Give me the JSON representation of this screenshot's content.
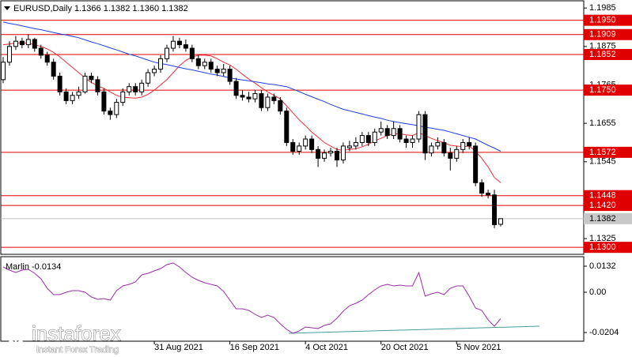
{
  "chart_data": {
    "type": "candlestick",
    "title": "EURUSD,Daily  1.1366 1.1382 1.1360 1.1382",
    "categories": [
      null,
      null,
      null,
      null,
      null,
      null,
      null,
      null,
      null,
      null,
      null,
      null,
      null,
      null,
      null,
      null,
      null,
      null,
      null,
      null,
      null,
      null,
      null,
      null,
      "31 Aug 2021",
      null,
      null,
      null,
      null,
      null,
      null,
      null,
      null,
      null,
      null,
      null,
      "16 Sep 2021",
      null,
      null,
      null,
      null,
      null,
      null,
      null,
      null,
      null,
      null,
      null,
      "4 Oct 2021",
      null,
      null,
      null,
      null,
      null,
      null,
      null,
      null,
      null,
      null,
      null,
      "20 Oct 2021",
      null,
      null,
      null,
      null,
      null,
      null,
      null,
      null,
      null,
      null,
      null,
      "5 Nov 2021",
      null,
      null,
      null,
      null,
      null,
      null,
      null
    ],
    "candles": [
      [
        1.178,
        1.1845,
        1.177,
        1.183
      ],
      [
        1.183,
        1.189,
        1.182,
        1.1875
      ],
      [
        1.1875,
        1.1905,
        1.1865,
        1.189
      ],
      [
        1.189,
        1.19,
        1.187,
        1.188
      ],
      [
        1.188,
        1.1909,
        1.187,
        1.1895
      ],
      [
        1.1895,
        1.19,
        1.186,
        1.187
      ],
      [
        1.187,
        1.188,
        1.184,
        1.185
      ],
      [
        1.185,
        1.186,
        1.182,
        1.183
      ],
      [
        1.183,
        1.184,
        1.178,
        1.179
      ],
      [
        1.179,
        1.18,
        1.1735,
        1.1745
      ],
      [
        1.1745,
        1.1755,
        1.171,
        1.172
      ],
      [
        1.172,
        1.1745,
        1.171,
        1.1735
      ],
      [
        1.1735,
        1.176,
        1.1725,
        1.1745
      ],
      [
        1.1745,
        1.18,
        1.174,
        1.179
      ],
      [
        1.179,
        1.18,
        1.177,
        1.178
      ],
      [
        1.178,
        1.179,
        1.1735,
        1.1745
      ],
      [
        1.1745,
        1.1755,
        1.168,
        1.169
      ],
      [
        1.169,
        1.17,
        1.1665,
        1.168
      ],
      [
        1.168,
        1.1725,
        1.167,
        1.1715
      ],
      [
        1.1715,
        1.1755,
        1.1705,
        1.1745
      ],
      [
        1.1745,
        1.177,
        1.1735,
        1.176
      ],
      [
        1.176,
        1.177,
        1.1735,
        1.1745
      ],
      [
        1.1745,
        1.178,
        1.1735,
        1.177
      ],
      [
        1.177,
        1.181,
        1.176,
        1.18
      ],
      [
        1.18,
        1.182,
        1.179,
        1.181
      ],
      [
        1.181,
        1.185,
        1.18,
        1.184
      ],
      [
        1.184,
        1.188,
        1.183,
        1.187
      ],
      [
        1.187,
        1.1905,
        1.186,
        1.189
      ],
      [
        1.189,
        1.19,
        1.187,
        1.188
      ],
      [
        1.188,
        1.1895,
        1.186,
        1.187
      ],
      [
        1.187,
        1.188,
        1.183,
        1.184
      ],
      [
        1.184,
        1.185,
        1.181,
        1.182
      ],
      [
        1.182,
        1.184,
        1.181,
        1.183
      ],
      [
        1.183,
        1.184,
        1.18,
        1.181
      ],
      [
        1.181,
        1.182,
        1.179,
        1.18
      ],
      [
        1.18,
        1.1825,
        1.179,
        1.181
      ],
      [
        1.181,
        1.182,
        1.1765,
        1.1775
      ],
      [
        1.1775,
        1.1785,
        1.1725,
        1.1735
      ],
      [
        1.1735,
        1.175,
        1.172,
        1.173
      ],
      [
        1.173,
        1.1745,
        1.1715,
        1.1725
      ],
      [
        1.1725,
        1.175,
        1.1715,
        1.174
      ],
      [
        1.174,
        1.175,
        1.169,
        1.17
      ],
      [
        1.17,
        1.174,
        1.169,
        1.173
      ],
      [
        1.173,
        1.174,
        1.171,
        1.172
      ],
      [
        1.172,
        1.173,
        1.168,
        1.169
      ],
      [
        1.169,
        1.17,
        1.159,
        1.16
      ],
      [
        1.16,
        1.161,
        1.1565,
        1.1575
      ],
      [
        1.1575,
        1.16,
        1.1565,
        1.159
      ],
      [
        1.159,
        1.162,
        1.158,
        1.161
      ],
      [
        1.161,
        1.162,
        1.157,
        1.158
      ],
      [
        1.158,
        1.159,
        1.153,
        1.1555
      ],
      [
        1.1555,
        1.158,
        1.1545,
        1.157
      ],
      [
        1.157,
        1.1585,
        1.156,
        1.1575
      ],
      [
        1.1575,
        1.1585,
        1.153,
        1.155
      ],
      [
        1.155,
        1.16,
        1.154,
        1.159
      ],
      [
        1.1585,
        1.1605,
        1.1575,
        1.159
      ],
      [
        1.159,
        1.1615,
        1.158,
        1.16
      ],
      [
        1.16,
        1.163,
        1.159,
        1.162
      ],
      [
        1.162,
        1.163,
        1.159,
        1.16
      ],
      [
        1.16,
        1.164,
        1.159,
        1.163
      ],
      [
        1.163,
        1.166,
        1.162,
        1.164
      ],
      [
        1.164,
        1.165,
        1.161,
        1.162
      ],
      [
        1.162,
        1.166,
        1.161,
        1.164
      ],
      [
        1.164,
        1.165,
        1.16,
        1.161
      ],
      [
        1.161,
        1.162,
        1.1585,
        1.16
      ],
      [
        1.16,
        1.162,
        1.1585,
        1.161
      ],
      [
        1.161,
        1.169,
        1.16,
        1.168
      ],
      [
        1.168,
        1.169,
        1.155,
        1.157
      ],
      [
        1.157,
        1.16,
        1.156,
        1.159
      ],
      [
        1.159,
        1.1615,
        1.158,
        1.16
      ],
      [
        1.16,
        1.161,
        1.156,
        1.157
      ],
      [
        1.157,
        1.1585,
        1.152,
        1.1555
      ],
      [
        1.1555,
        1.159,
        1.1545,
        1.158
      ],
      [
        1.158,
        1.161,
        1.157,
        1.16
      ],
      [
        1.16,
        1.1615,
        1.158,
        1.159
      ],
      [
        1.159,
        1.16,
        1.1475,
        1.1485
      ],
      [
        1.1485,
        1.1495,
        1.1445,
        1.1455
      ],
      [
        1.1455,
        1.1465,
        1.144,
        1.145
      ],
      [
        1.145,
        1.1465,
        1.1355,
        1.1365
      ],
      [
        1.1366,
        1.1382,
        1.136,
        1.1382
      ]
    ],
    "bull_color": "#ffffff",
    "bear_color": "#000000",
    "moving_averages": [
      {
        "color": "#e8303a",
        "values": [
          1.188,
          1.1882,
          1.1885,
          1.1885,
          1.1884,
          1.188,
          1.1875,
          1.1868,
          1.1858,
          1.1845,
          1.183,
          1.1815,
          1.18,
          1.1785,
          1.1772,
          1.1762,
          1.1755,
          1.1745,
          1.1735,
          1.173,
          1.1728,
          1.1727,
          1.173,
          1.1738,
          1.175,
          1.1765,
          1.178,
          1.18,
          1.182,
          1.1835,
          1.1845,
          1.185,
          1.185,
          1.1848,
          1.184,
          1.183,
          1.1822,
          1.181,
          1.1795,
          1.1782,
          1.177,
          1.1757,
          1.1745,
          1.1735,
          1.1725,
          1.1705,
          1.1685,
          1.1665,
          1.1648,
          1.163,
          1.1615,
          1.16,
          1.159,
          1.158,
          1.1578,
          1.158,
          1.1582,
          1.1588,
          1.1595,
          1.1605,
          1.1612,
          1.162,
          1.1625,
          1.1625,
          1.1622,
          1.162,
          1.1628,
          1.162,
          1.1612,
          1.1605,
          1.16,
          1.1592,
          1.159,
          1.1588,
          1.159,
          1.1575,
          1.1555,
          1.153,
          1.15,
          1.1485
        ]
      },
      {
        "color": "#2040e0",
        "values": [
          1.1945,
          1.1941,
          1.1938,
          1.1934,
          1.193,
          1.1926,
          1.1923,
          1.1919,
          1.1915,
          1.1911,
          1.1908,
          1.1904,
          1.19,
          1.1894,
          1.1888,
          1.1883,
          1.1877,
          1.1871,
          1.1865,
          1.1859,
          1.1853,
          1.1848,
          1.1842,
          1.1836,
          1.183,
          1.1826,
          1.1823,
          1.1819,
          1.1815,
          1.1811,
          1.1808,
          1.1804,
          1.18,
          1.1796,
          1.1793,
          1.1789,
          1.1785,
          1.1782,
          1.1779,
          1.1777,
          1.1774,
          1.1771,
          1.1768,
          1.1766,
          1.1763,
          1.176,
          1.1753,
          1.1746,
          1.1738,
          1.1731,
          1.1724,
          1.1717,
          1.1709,
          1.1702,
          1.1695,
          1.1691,
          1.1686,
          1.1682,
          1.1677,
          1.1673,
          1.1669,
          1.1664,
          1.166,
          1.1657,
          1.1654,
          1.1651,
          1.1648,
          1.1644,
          1.1641,
          1.1638,
          1.1635,
          1.163,
          1.1625,
          1.162,
          1.1615,
          1.161,
          1.1601,
          1.1592,
          1.1584,
          1.1575
        ]
      }
    ],
    "ylim": [
      1.128,
      1.2008
    ],
    "yticks": [
      1.1985,
      1.1875,
      1.1765,
      1.1655,
      1.1545,
      1.1325
    ],
    "levels": [
      {
        "value": 1.195,
        "label": "1.1950"
      },
      1.1909,
      1.1852,
      {
        "value": 1.175,
        "label": "1.1750"
      },
      1.1572,
      1.1448,
      {
        "value": 1.142,
        "label": "1.1420"
      },
      {
        "value": 1.13,
        "label": "1.1300"
      }
    ],
    "level_color": "#e00000",
    "current_price": 1.1382,
    "indicator": {
      "label": "Marlin -0.0134",
      "color": "#9b2fa8",
      "values": [
        0.0128,
        0.0112,
        0.01,
        0.0112,
        0.0116,
        0.0096,
        0.0068,
        0.002,
        -0.0012,
        -0.0012,
        0,
        0.0008,
        0.0008,
        0,
        -0.0024,
        -0.0036,
        -0.0032,
        -0.004,
        0.0008,
        0.0032,
        0.004,
        0.0052,
        0.0088,
        0.0096,
        0.0108,
        0.012,
        0.014,
        0.0148,
        0.0128,
        0.01,
        0.0076,
        0.006,
        0.0048,
        0.004,
        0.0032,
        0.0004,
        -0.004,
        -0.0084,
        -0.0084,
        -0.0092,
        -0.0112,
        -0.0128,
        -0.0116,
        -0.0128,
        -0.016,
        -0.0188,
        -0.0208,
        -0.0196,
        -0.0176,
        -0.018,
        -0.0184,
        -0.0168,
        -0.016,
        -0.0132,
        -0.0096,
        -0.0068,
        -0.0056,
        -0.004,
        -0.0012,
        0.0012,
        0.0032,
        0.004,
        0.0032,
        0.0036,
        0.0032,
        0.0032,
        0.01,
        -0.002,
        -0.0008,
        0,
        -0.0012,
        0.002,
        0.0032,
        0.0032,
        -0.002,
        -0.008,
        -0.0092,
        -0.014,
        -0.0172,
        -0.0134
      ],
      "ylim": [
        -0.0248,
        0.018
      ],
      "yticks": [
        0.0132,
        {
          "value": 0,
          "label": "0.00"
        },
        -0.0204
      ]
    },
    "logo": {
      "name": "instaforex",
      "tagline": "Instant Forex Trading"
    }
  }
}
